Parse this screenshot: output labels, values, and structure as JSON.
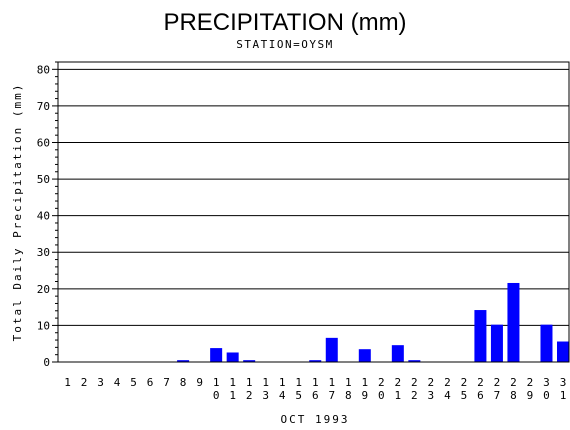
{
  "chart_data": {
    "type": "bar",
    "title": "PRECIPITATION (mm)",
    "subtitle": "STATION=OYSM",
    "xlabel": "OCT 1993",
    "ylabel": "Total Daily Precipitation (mm)",
    "ylim": [
      0,
      82
    ],
    "yticks": [
      0,
      10,
      20,
      30,
      40,
      50,
      60,
      70,
      80
    ],
    "grid": "horizontal",
    "bar_color": "#0000ff",
    "categories": [
      "1",
      "2",
      "3",
      "4",
      "5",
      "6",
      "7",
      "8",
      "9",
      "10",
      "11",
      "12",
      "13",
      "14",
      "15",
      "16",
      "17",
      "18",
      "19",
      "20",
      "21",
      "22",
      "23",
      "24",
      "25",
      "26",
      "27",
      "28",
      "29",
      "30",
      "31"
    ],
    "values": [
      0,
      0,
      0,
      0,
      0,
      0,
      0,
      0.5,
      0,
      3.8,
      2.6,
      0.5,
      0,
      0,
      0,
      0.5,
      6.6,
      0,
      3.5,
      0,
      4.6,
      0.5,
      0,
      0,
      0,
      14.2,
      10.2,
      21.6,
      0,
      10.2,
      5.6
    ]
  }
}
